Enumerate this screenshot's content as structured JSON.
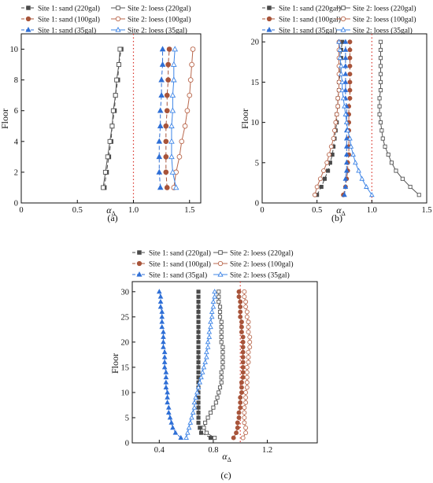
{
  "colors": {
    "sand_220": "#4a4a4a",
    "loess_220": "#555555",
    "sand_100": "#a8543a",
    "loess_100": "#b9674c",
    "sand_35": "#2f6fd6",
    "loess_35": "#3d84e6",
    "reference_line": "#d9342b",
    "axis": "#111111"
  },
  "legend_labels": [
    "Site 1: sand (220gal)",
    "Site 2: loess (220gal)",
    "Site 1: sand (100gal)",
    "Site 2: loess (100gal)",
    "Site 1: sand (35gal)",
    "Site 2: loess (35gal)"
  ],
  "chart_data": [
    {
      "type": "line",
      "panel_label": "(a)",
      "xlabel": "α",
      "xlabel_sub": "Δ",
      "ylabel": "Floor",
      "xlim": [
        0,
        1.6
      ],
      "ylim": [
        0,
        11
      ],
      "xticks": [
        0,
        0.5,
        1.0,
        1.5
      ],
      "xtick_labels": [
        "0",
        "0.5",
        "1.0",
        "1.5"
      ],
      "yticks": [
        0,
        2,
        4,
        6,
        8,
        10
      ],
      "ytick_labels": [
        "0",
        "2",
        "4",
        "6",
        "8",
        "10"
      ],
      "reference_x": 1.0,
      "legend_position": "top",
      "y": [
        1,
        2,
        3,
        4,
        5,
        6,
        7,
        8,
        9,
        10
      ],
      "series": [
        {
          "name": "Site 1: sand (220gal)",
          "style": "sand_220",
          "x": [
            0.74,
            0.76,
            0.78,
            0.8,
            0.81,
            0.83,
            0.84,
            0.86,
            0.87,
            0.89
          ]
        },
        {
          "name": "Site 2: loess (220gal)",
          "style": "loess_220",
          "x": [
            0.73,
            0.75,
            0.77,
            0.79,
            0.81,
            0.82,
            0.84,
            0.85,
            0.87,
            0.88
          ]
        },
        {
          "name": "Site 1: sand (100gal)",
          "style": "sand_100",
          "x": [
            1.3,
            1.29,
            1.29,
            1.29,
            1.29,
            1.3,
            1.3,
            1.31,
            1.31,
            1.32
          ]
        },
        {
          "name": "Site 2: loess (100gal)",
          "style": "loess_100",
          "x": [
            1.36,
            1.38,
            1.41,
            1.43,
            1.46,
            1.48,
            1.5,
            1.51,
            1.52,
            1.53
          ]
        },
        {
          "name": "Site 1: sand (35gal)",
          "style": "sand_35",
          "x": [
            1.24,
            1.23,
            1.23,
            1.23,
            1.24,
            1.24,
            1.25,
            1.25,
            1.26,
            1.26
          ]
        },
        {
          "name": "Site 2: loess (35gal)",
          "style": "loess_35",
          "x": [
            1.38,
            1.35,
            1.34,
            1.34,
            1.34,
            1.35,
            1.35,
            1.36,
            1.36,
            1.37
          ]
        }
      ]
    },
    {
      "type": "line",
      "panel_label": "(b)",
      "xlabel": "α",
      "xlabel_sub": "Δ",
      "ylabel": "Floor",
      "xlim": [
        0,
        1.5
      ],
      "ylim": [
        0,
        21
      ],
      "xticks": [
        0,
        0.5,
        1.0,
        1.5
      ],
      "xtick_labels": [
        "0",
        "0.5",
        "1.0",
        "1.5"
      ],
      "yticks": [
        0,
        5,
        10,
        15,
        20
      ],
      "ytick_labels": [
        "0",
        "5",
        "10",
        "15",
        "20"
      ],
      "reference_x": 1.0,
      "legend_position": "top",
      "y": [
        1,
        2,
        3,
        4,
        5,
        6,
        7,
        8,
        9,
        10,
        11,
        12,
        13,
        14,
        15,
        16,
        17,
        18,
        19,
        20
      ],
      "series": [
        {
          "name": "Site 1: sand (220gal)",
          "style": "sand_220",
          "x": [
            0.5,
            0.54,
            0.57,
            0.6,
            0.62,
            0.64,
            0.65,
            0.66,
            0.67,
            0.68,
            0.68,
            0.69,
            0.69,
            0.7,
            0.7,
            0.71,
            0.71,
            0.72,
            0.72,
            0.73
          ]
        },
        {
          "name": "Site 2: loess (220gal)",
          "style": "loess_220",
          "x": [
            1.43,
            1.35,
            1.28,
            1.22,
            1.18,
            1.15,
            1.12,
            1.1,
            1.09,
            1.08,
            1.07,
            1.07,
            1.07,
            1.08,
            1.08,
            1.08,
            1.08,
            1.08,
            1.08,
            1.08
          ]
        },
        {
          "name": "Site 1: sand (100gal)",
          "style": "sand_100",
          "x": [
            0.74,
            0.76,
            0.77,
            0.78,
            0.78,
            0.79,
            0.79,
            0.79,
            0.79,
            0.79,
            0.79,
            0.79,
            0.8,
            0.8,
            0.8,
            0.8,
            0.8,
            0.8,
            0.8,
            0.8
          ]
        },
        {
          "name": "Site 2: loess (100gal)",
          "style": "loess_100",
          "x": [
            0.48,
            0.5,
            0.53,
            0.56,
            0.59,
            0.61,
            0.63,
            0.65,
            0.66,
            0.67,
            0.68,
            0.69,
            0.69,
            0.7,
            0.7,
            0.7,
            0.7,
            0.7,
            0.7,
            0.7
          ]
        },
        {
          "name": "Site 1: sand (35gal)",
          "style": "sand_35",
          "x": [
            0.75,
            0.76,
            0.76,
            0.77,
            0.77,
            0.77,
            0.77,
            0.77,
            0.77,
            0.77,
            0.77,
            0.77,
            0.76,
            0.76,
            0.76,
            0.76,
            0.76,
            0.76,
            0.76,
            0.76
          ]
        },
        {
          "name": "Site 2: loess (35gal)",
          "style": "loess_35",
          "x": [
            1.0,
            0.95,
            0.91,
            0.88,
            0.85,
            0.83,
            0.81,
            0.8,
            0.78,
            0.77,
            0.76,
            0.75,
            0.74,
            0.73,
            0.73,
            0.72,
            0.72,
            0.71,
            0.71,
            0.7
          ]
        }
      ]
    },
    {
      "type": "line",
      "panel_label": "(c)",
      "xlabel": "α",
      "xlabel_sub": "Δ",
      "ylabel": "Floor",
      "xlim": [
        0.2,
        1.57
      ],
      "ylim": [
        0,
        32
      ],
      "xticks": [
        0.4,
        0.8,
        1.2
      ],
      "xtick_labels": [
        "0.4",
        "0.8",
        "1.2"
      ],
      "yticks": [
        0,
        5,
        10,
        15,
        20,
        25,
        30
      ],
      "ytick_labels": [
        "0",
        "5",
        "10",
        "15",
        "20",
        "25",
        "30"
      ],
      "reference_x": 1.0,
      "legend_position": "top",
      "y": [
        1,
        2,
        3,
        4,
        5,
        6,
        7,
        8,
        9,
        10,
        11,
        12,
        13,
        14,
        15,
        16,
        17,
        18,
        19,
        20,
        21,
        22,
        23,
        24,
        25,
        26,
        27,
        28,
        29,
        30
      ],
      "series": [
        {
          "name": "Site 1: sand (220gal)",
          "style": "sand_220",
          "x": [
            0.78,
            0.71,
            0.7,
            0.69,
            0.69,
            0.69,
            0.69,
            0.69,
            0.69,
            0.69,
            0.69,
            0.69,
            0.69,
            0.69,
            0.69,
            0.69,
            0.69,
            0.69,
            0.69,
            0.69,
            0.69,
            0.69,
            0.69,
            0.69,
            0.69,
            0.69,
            0.69,
            0.69,
            0.69,
            0.69
          ]
        },
        {
          "name": "Site 2: loess (220gal)",
          "style": "loess_220",
          "x": [
            0.81,
            0.75,
            0.73,
            0.74,
            0.76,
            0.78,
            0.8,
            0.82,
            0.83,
            0.84,
            0.85,
            0.86,
            0.86,
            0.86,
            0.87,
            0.87,
            0.87,
            0.87,
            0.87,
            0.86,
            0.86,
            0.86,
            0.86,
            0.86,
            0.85,
            0.85,
            0.85,
            0.84,
            0.84,
            0.84
          ]
        },
        {
          "name": "Site 1: sand (100gal)",
          "style": "sand_100",
          "x": [
            0.95,
            0.97,
            0.98,
            0.98,
            0.99,
            0.99,
            1.0,
            1.0,
            1.0,
            1.01,
            1.01,
            1.01,
            1.02,
            1.02,
            1.02,
            1.02,
            1.02,
            1.02,
            1.02,
            1.02,
            1.02,
            1.01,
            1.01,
            1.01,
            1.0,
            1.0,
            1.0,
            1.0,
            0.99,
            0.99
          ]
        },
        {
          "name": "Site 2: loess (100gal)",
          "style": "loess_100",
          "x": [
            1.02,
            1.04,
            1.04,
            1.03,
            1.03,
            1.03,
            1.03,
            1.04,
            1.04,
            1.04,
            1.05,
            1.05,
            1.05,
            1.05,
            1.05,
            1.06,
            1.06,
            1.06,
            1.07,
            1.07,
            1.07,
            1.06,
            1.06,
            1.06,
            1.05,
            1.05,
            1.04,
            1.04,
            1.03,
            1.03
          ]
        },
        {
          "name": "Site 1: sand (35gal)",
          "style": "sand_35",
          "x": [
            0.56,
            0.52,
            0.5,
            0.49,
            0.48,
            0.47,
            0.47,
            0.46,
            0.46,
            0.46,
            0.45,
            0.45,
            0.45,
            0.45,
            0.44,
            0.44,
            0.44,
            0.44,
            0.43,
            0.43,
            0.43,
            0.43,
            0.42,
            0.42,
            0.42,
            0.42,
            0.41,
            0.41,
            0.41,
            0.4
          ]
        },
        {
          "name": "Site 2: loess (35gal)",
          "style": "loess_35",
          "x": [
            0.6,
            0.61,
            0.62,
            0.63,
            0.64,
            0.65,
            0.66,
            0.66,
            0.67,
            0.68,
            0.69,
            0.7,
            0.71,
            0.72,
            0.73,
            0.74,
            0.75,
            0.75,
            0.76,
            0.76,
            0.77,
            0.77,
            0.78,
            0.78,
            0.79,
            0.79,
            0.8,
            0.8,
            0.81,
            0.81
          ]
        }
      ]
    }
  ]
}
